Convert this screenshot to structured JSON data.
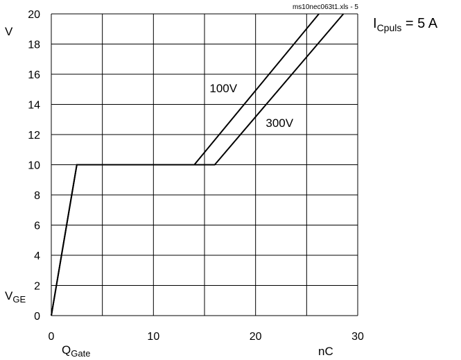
{
  "chart_data": {
    "type": "line",
    "xlabel_main": "Q",
    "xlabel_sub": "Gate",
    "xunit": "nC",
    "ylabel_main": "V",
    "ylabel_sub": "GE",
    "yunit": "V",
    "xlim": [
      0,
      30
    ],
    "ylim": [
      0,
      20
    ],
    "xticks": [
      0,
      10,
      20,
      30
    ],
    "yticks": [
      0,
      2,
      4,
      6,
      8,
      10,
      12,
      14,
      16,
      18,
      20
    ],
    "grid": true,
    "grid_x_step": 5,
    "grid_y_step": 2,
    "file_label": "ms10nec063t1.xls - 5",
    "condition": {
      "main": "I",
      "sub": "Cpuls",
      "rest": " = 5 A"
    },
    "series": [
      {
        "name": "100V",
        "x": [
          0,
          2.5,
          14,
          26.2
        ],
        "y": [
          0,
          10,
          10,
          20
        ]
      },
      {
        "name": "300V",
        "x": [
          0,
          2.5,
          16,
          28.6
        ],
        "y": [
          0,
          10,
          10,
          20
        ]
      }
    ],
    "annotations": [
      {
        "text": "100V",
        "x": 15.5,
        "y": 14.8
      },
      {
        "text": "300V",
        "x": 21.0,
        "y": 12.5
      }
    ]
  }
}
